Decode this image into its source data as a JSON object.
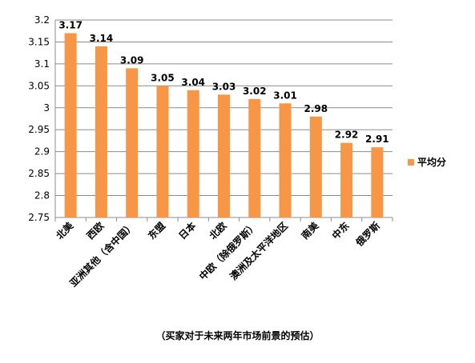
{
  "chart_data": {
    "type": "bar",
    "categories": [
      "北美",
      "西欧",
      "亚洲其他（含中国）",
      "东盟",
      "日本",
      "北欧",
      "中欧（除俄罗斯）",
      "澳洲及太平洋地区",
      "南美",
      "中东",
      "俄罗斯"
    ],
    "series": [
      {
        "name": "平均分",
        "values": [
          3.17,
          3.14,
          3.09,
          3.05,
          3.04,
          3.03,
          3.02,
          3.01,
          2.98,
          2.92,
          2.91
        ]
      }
    ],
    "data_labels": [
      "3.17",
      "3.14",
      "3.09",
      "3.05",
      "3.04",
      "3.03",
      "3.02",
      "3.01",
      "2.98",
      "2.92",
      "2.91"
    ],
    "yticks": [
      "2.75",
      "2.8",
      "2.85",
      "2.9",
      "2.95",
      "3",
      "3.05",
      "3.1",
      "3.15",
      "3.2"
    ],
    "ylim": [
      2.75,
      3.2
    ],
    "grid": true,
    "legend": "right",
    "bar_color": "#f79646",
    "grid_color": "#8c8c8c",
    "axis_color": "#8c8c8c"
  },
  "caption": "（买家对于未来两年市场前景的预估）"
}
